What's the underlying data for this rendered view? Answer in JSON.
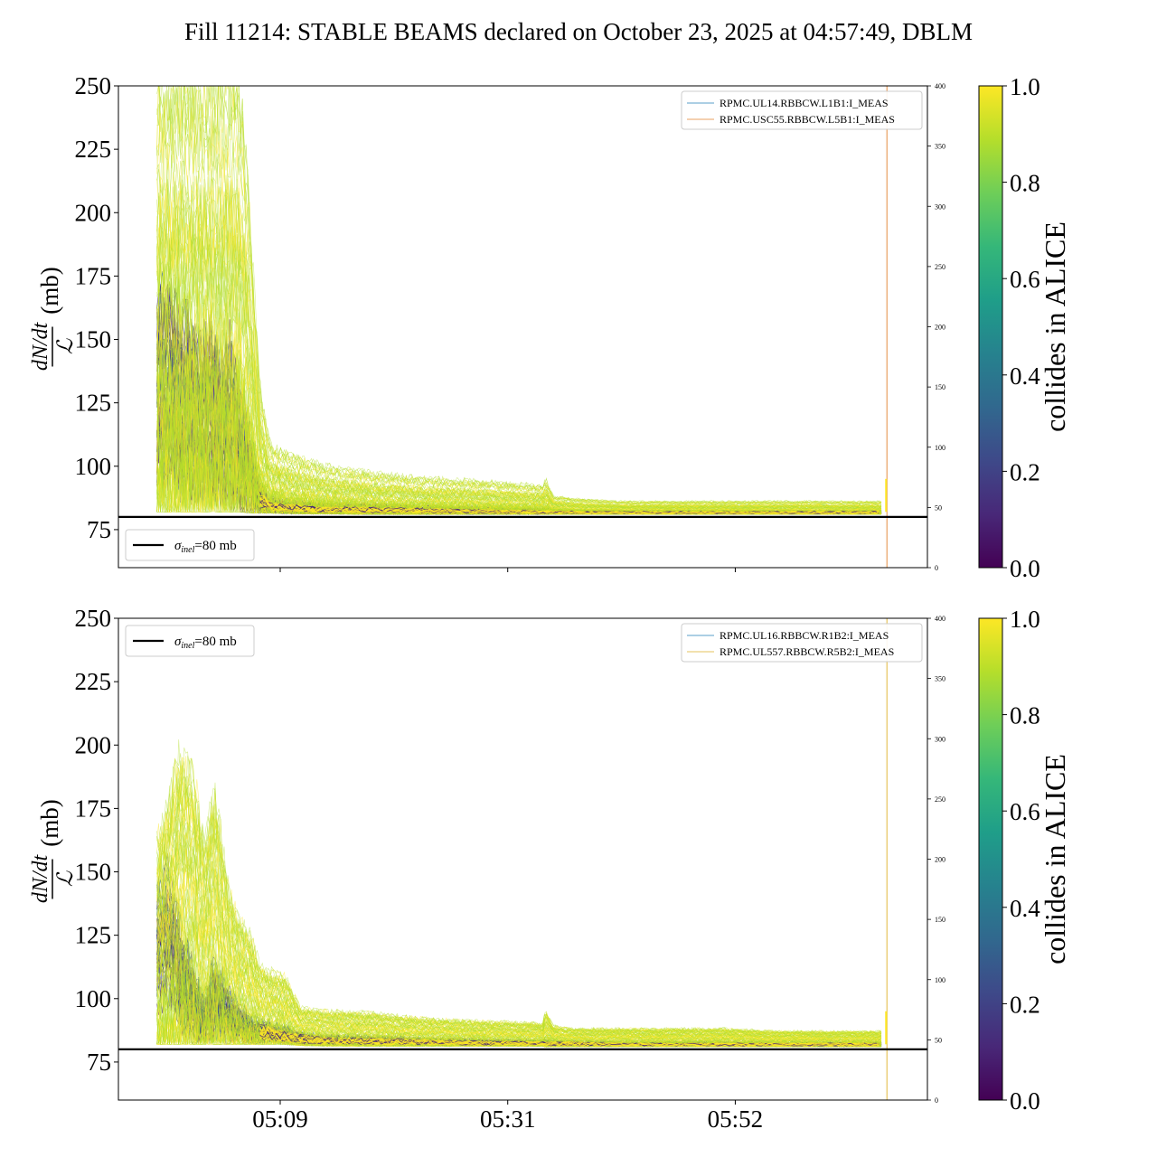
{
  "figure_title": "Fill 11214: STABLE BEAMS declared on October 23, 2025 at 04:57:49, DBLM",
  "colors": {
    "viridis": [
      "#440154",
      "#482878",
      "#3e4989",
      "#31688e",
      "#26828e",
      "#1f9e89",
      "#35b779",
      "#6ece58",
      "#b5de2b",
      "#fde725"
    ],
    "reference_line": "#000000",
    "blm_b1_left": "#5a9fc8",
    "blm_b1_right": "#e8a060",
    "blm_b2_left": "#5a9fc8",
    "blm_b2_right": "#e6c35c"
  },
  "chart_data": [
    {
      "type": "line",
      "panel": "top",
      "ylabel_numerator": "dN/dt",
      "ylabel_denominator": "ℒ",
      "ylabel_unit": "(mb)",
      "ylim": [
        60,
        250
      ],
      "yticks": [
        75,
        100,
        125,
        150,
        175,
        200,
        225,
        250
      ],
      "xticks": [
        "",
        "",
        ""
      ],
      "xlim_minutes": [
        0,
        80
      ],
      "xtick_minutes": [
        16,
        38.5,
        61
      ],
      "right_ylim": [
        0,
        400
      ],
      "right_yticks": [
        0,
        50,
        100,
        150,
        200,
        250,
        300,
        350,
        400
      ],
      "reference": {
        "label_sigma": "σ",
        "label_sub": "inel",
        "label_rest": "=80 mb",
        "value": 80,
        "legend_position": "lower-left"
      },
      "blm_legend": {
        "position": "upper-right",
        "entries": [
          "RPMC.UL14.RBBCW.L1B1:I_MEAS",
          "RPMC.USC55.RBBCW.L5B1:I_MEAS"
        ]
      },
      "envelope": {
        "t": [
          3.8,
          5,
          6,
          7,
          8,
          9,
          10,
          11,
          12,
          13,
          14,
          15,
          17,
          20,
          25,
          30,
          35,
          42,
          42.2,
          43,
          45,
          50,
          55,
          60,
          65,
          70,
          72,
          75.5
        ],
        "low": [
          82,
          82,
          82,
          82,
          82,
          82,
          82,
          82,
          82,
          81.5,
          81.5,
          81.5,
          81.3,
          81.2,
          81,
          81,
          81,
          81,
          81,
          81,
          81,
          81,
          81,
          81,
          81,
          81,
          81,
          81
        ],
        "high": [
          250,
          250,
          250,
          250,
          250,
          250,
          250,
          250,
          250,
          200,
          130,
          108,
          104,
          100,
          97,
          95,
          94,
          92,
          95,
          88,
          87,
          86,
          86,
          86,
          86,
          86,
          86,
          86
        ],
        "core": [
          160,
          160,
          150,
          150,
          140,
          145,
          130,
          140,
          120,
          105,
          90,
          86,
          85,
          84,
          84,
          83.5,
          83,
          82.5,
          82.5,
          82.5,
          82.3,
          82.2,
          82.2,
          82.2,
          82.2,
          82.3,
          82.3,
          82.3
        ]
      },
      "blm_spike_t": 76,
      "colorbar": {
        "label": "collides in ALICE",
        "ticks": [
          0.0,
          0.2,
          0.4,
          0.6,
          0.8,
          1.0
        ],
        "tick_labels": [
          "0.0",
          "0.2",
          "0.4",
          "0.6",
          "0.8",
          "1.0"
        ]
      }
    },
    {
      "type": "line",
      "panel": "bottom",
      "ylabel_numerator": "dN/dt",
      "ylabel_denominator": "ℒ",
      "ylabel_unit": "(mb)",
      "ylim": [
        60,
        250
      ],
      "yticks": [
        75,
        100,
        125,
        150,
        175,
        200,
        225,
        250
      ],
      "xticks": [
        "05:09",
        "05:31",
        "05:52"
      ],
      "xlim_minutes": [
        0,
        80
      ],
      "xtick_minutes": [
        16,
        38.5,
        61
      ],
      "right_ylim": [
        0,
        400
      ],
      "right_yticks": [
        0,
        50,
        100,
        150,
        200,
        250,
        300,
        350,
        400
      ],
      "reference": {
        "label_sigma": "σ",
        "label_sub": "inel",
        "label_rest": "=80 mb",
        "value": 80,
        "legend_position": "upper-left"
      },
      "blm_legend": {
        "position": "upper-right",
        "entries": [
          "RPMC.UL16.RBBCW.R1B2:I_MEAS",
          "RPMC.UL557.RBBCW.R5B2:I_MEAS"
        ]
      },
      "envelope": {
        "t": [
          3.8,
          5,
          6,
          7.5,
          8.5,
          9.5,
          11,
          12,
          13,
          14,
          15,
          16.5,
          18,
          20,
          25,
          30,
          35,
          42,
          42.2,
          43,
          45,
          50,
          55,
          60,
          65,
          70,
          72,
          75.5
        ],
        "low": [
          82,
          82,
          82,
          82,
          82,
          82,
          82,
          82,
          82,
          82,
          82,
          82,
          81.5,
          81.3,
          81.2,
          81.2,
          81.2,
          81.2,
          81,
          81,
          81,
          81,
          81,
          81,
          81,
          81,
          81,
          81
        ],
        "high": [
          160,
          175,
          195,
          185,
          160,
          180,
          140,
          130,
          125,
          112,
          110,
          108,
          96,
          95,
          94,
          92,
          91,
          90,
          95,
          89,
          88,
          88,
          88,
          88,
          87,
          87,
          87,
          87
        ],
        "core": [
          140,
          150,
          125,
          105,
          95,
          110,
          100,
          95,
          90,
          90,
          89,
          87,
          86,
          85,
          84.5,
          84,
          83.5,
          83,
          83,
          83,
          83,
          82.5,
          82.5,
          82.5,
          82.5,
          82.5,
          82.5,
          82.5
        ]
      },
      "blm_spike_t": 76,
      "colorbar": {
        "label": "collides in ALICE",
        "ticks": [
          0.0,
          0.2,
          0.4,
          0.6,
          0.8,
          1.0
        ],
        "tick_labels": [
          "0.0",
          "0.2",
          "0.4",
          "0.6",
          "0.8",
          "1.0"
        ]
      }
    }
  ]
}
